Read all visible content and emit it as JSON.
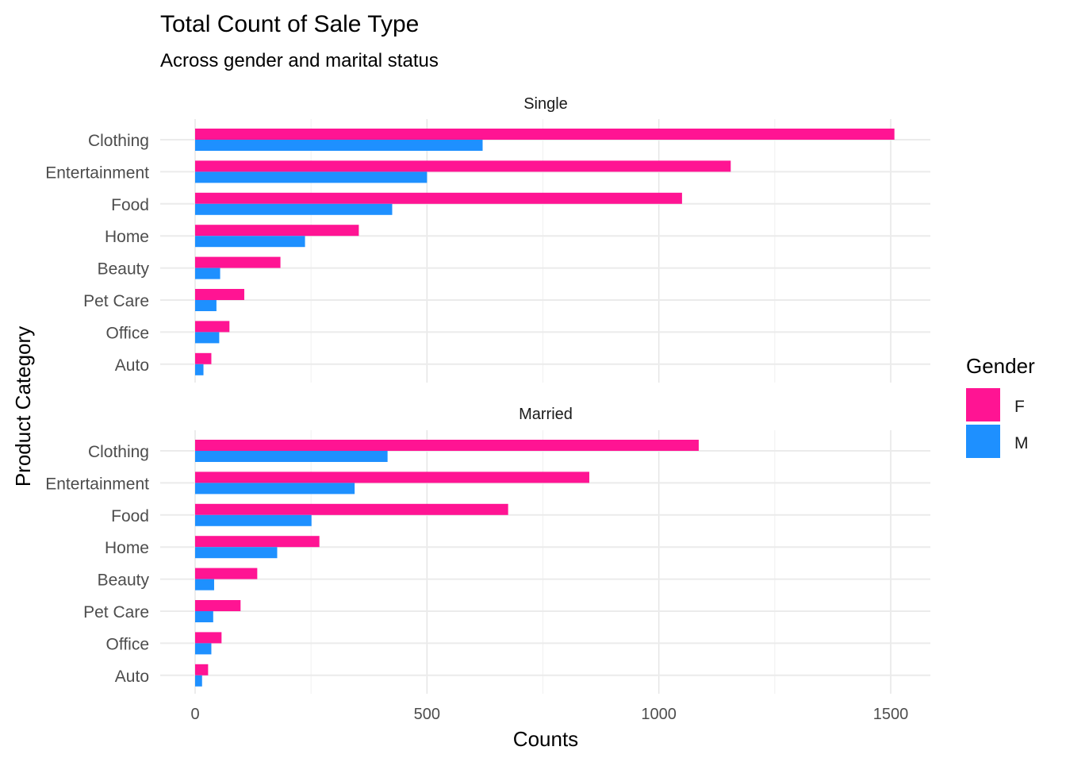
{
  "chart_data": {
    "type": "bar",
    "orientation": "horizontal",
    "title": "Total Count of Sale Type",
    "subtitle": "Across gender and marital status",
    "xlabel": "Counts",
    "ylabel": "Product Category",
    "xlim": [
      0,
      1580
    ],
    "x_ticks": [
      0,
      500,
      1000,
      1500
    ],
    "x_tick_labels": [
      "0",
      "500",
      "1000",
      "1500"
    ],
    "grid": true,
    "legend": {
      "title": "Gender",
      "position": "right",
      "entries": [
        {
          "label": "F",
          "color": "#FF1493"
        },
        {
          "label": "M",
          "color": "#1E90FF"
        }
      ]
    },
    "categories": [
      "Clothing",
      "Entertainment",
      "Food",
      "Home",
      "Beauty",
      "Pet Care",
      "Office",
      "Auto"
    ],
    "facets": [
      {
        "label": "Single",
        "series": [
          {
            "name": "F",
            "color": "#FF1493",
            "values": [
              1508,
              1155,
              1050,
              353,
              184,
              106,
              74,
              35
            ]
          },
          {
            "name": "M",
            "color": "#1E90FF",
            "values": [
              620,
              500,
              425,
              237,
              54,
              46,
              52,
              18
            ]
          }
        ]
      },
      {
        "label": "Married",
        "series": [
          {
            "name": "F",
            "color": "#FF1493",
            "values": [
              1086,
              850,
              675,
              268,
              134,
              98,
              57,
              28
            ]
          },
          {
            "name": "M",
            "color": "#1E90FF",
            "values": [
              415,
              344,
              251,
              177,
              41,
              39,
              35,
              15
            ]
          }
        ]
      }
    ]
  }
}
